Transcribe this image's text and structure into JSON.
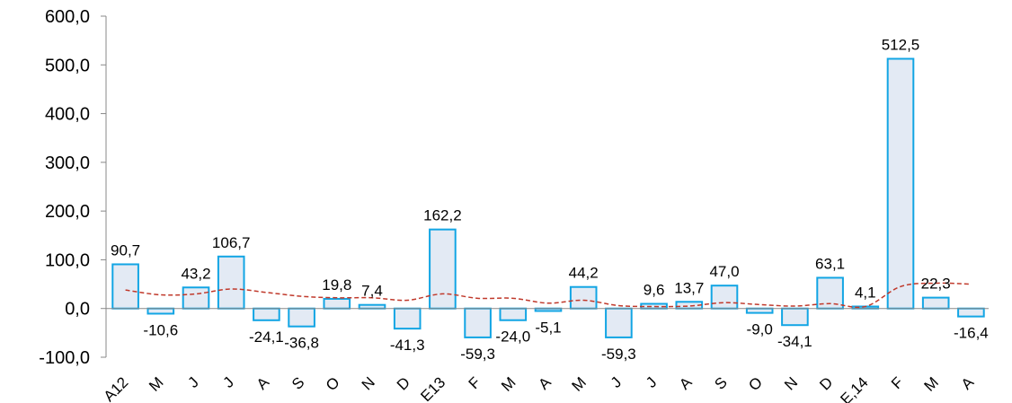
{
  "chart_data": {
    "type": "bar",
    "categories": [
      "A12",
      "M",
      "J",
      "J",
      "A",
      "S",
      "O",
      "N",
      "D",
      "E13",
      "F",
      "M",
      "A",
      "M",
      "J",
      "J",
      "A",
      "S",
      "O",
      "N",
      "D",
      "E,14",
      "F",
      "M",
      "A"
    ],
    "series": [
      {
        "values": [
          90.7,
          -10.6,
          43.2,
          106.7,
          -24.1,
          -36.8,
          19.8,
          7.4,
          -41.3,
          162.2,
          -59.3,
          -24.0,
          -5.1,
          44.2,
          -59.3,
          9.6,
          13.7,
          47.0,
          -9.0,
          -34.1,
          63.1,
          4.1,
          512.5,
          22.3,
          -16.4
        ]
      }
    ],
    "value_labels": [
      "90,7",
      "-10,6",
      "43,2",
      "106,7",
      "-24,1",
      "-36,8",
      "19,8",
      "7,4",
      "-41,3",
      "162,2",
      "-59,3",
      "-24,0",
      "-5,1",
      "44,2",
      "-59,3",
      "9,6",
      "13,7",
      "47,0",
      "-9,0",
      "-34,1",
      "63,1",
      "4,1",
      "512,5",
      "22,3",
      "-16,4"
    ],
    "trend": {
      "style": "dashed",
      "values": [
        38,
        28,
        30,
        40,
        33,
        25,
        22,
        22,
        17,
        30,
        21,
        21,
        11,
        17,
        6,
        4,
        5,
        12,
        8,
        5,
        10,
        4,
        45,
        52,
        50
      ]
    },
    "yticks": [
      "600,0",
      "500,0",
      "400,0",
      "300,0",
      "200,0",
      "100,0",
      "0,0",
      "-100,0"
    ],
    "ytick_values": [
      600,
      500,
      400,
      300,
      200,
      100,
      0,
      -100
    ],
    "ylim": [
      -100,
      600
    ],
    "title": "",
    "xlabel": "",
    "ylabel": "",
    "grid": false,
    "legend": "none",
    "colors": {
      "bar_fill": "#e3eaf4",
      "bar_stroke": "#12a5e4",
      "trend": "#c0392b",
      "axis": "#888888"
    }
  }
}
